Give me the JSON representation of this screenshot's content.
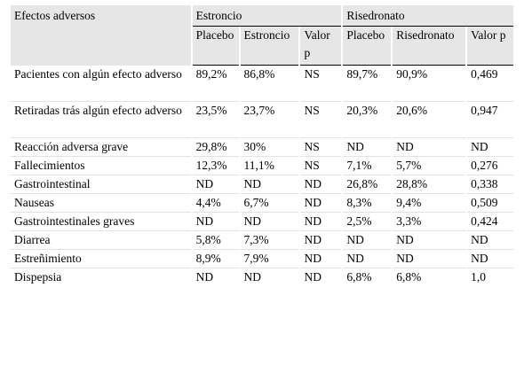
{
  "header": {
    "label_col": "Efectos adversos",
    "groups": [
      {
        "label": "Estroncio",
        "columns": [
          "Placebo",
          "Estroncio",
          "Valor p"
        ]
      },
      {
        "label": "Risedronato",
        "columns": [
          "Placebo",
          "Risedronato",
          "Valor p"
        ]
      }
    ]
  },
  "rows": [
    {
      "label": "Pacientes con algún efecto adverso",
      "values": [
        "89,2%",
        "86,8%",
        "NS",
        "89,7%",
        "90,9%",
        "0,469"
      ]
    },
    {
      "label": "Retiradas trás algún efecto adverso",
      "values": [
        "23,5%",
        "23,7%",
        "NS",
        "20,3%",
        "20,6%",
        "0,947"
      ]
    },
    {
      "label": "Reacción adversa grave",
      "values": [
        "29,8%",
        "30%",
        "NS",
        "ND",
        "ND",
        "ND"
      ]
    },
    {
      "label": "Fallecimientos",
      "values": [
        "12,3%",
        "11,1%",
        "NS",
        "7,1%",
        "5,7%",
        "0,276"
      ]
    },
    {
      "label": "Gastrointestinal",
      "values": [
        "ND",
        "ND",
        "ND",
        "26,8%",
        "28,8%",
        "0,338"
      ]
    },
    {
      "label": "Nauseas",
      "values": [
        "4,4%",
        "6,7%",
        "ND",
        "8,3%",
        "9,4%",
        "0,509"
      ]
    },
    {
      "label": "Gastrointestinales graves",
      "values": [
        "ND",
        "ND",
        "ND",
        "2,5%",
        "3,3%",
        "0,424"
      ]
    },
    {
      "label": "Diarrea",
      "values": [
        "5,8%",
        "7,3%",
        "ND",
        "ND",
        "ND",
        "ND"
      ]
    },
    {
      "label": "Estreñimiento",
      "values": [
        "8,9%",
        "7,9%",
        "ND",
        "ND",
        "ND",
        "ND"
      ]
    },
    {
      "label": "Dispepsia",
      "values": [
        "ND",
        "ND",
        "ND",
        "6,8%",
        "6,8%",
        "1,0"
      ]
    }
  ]
}
